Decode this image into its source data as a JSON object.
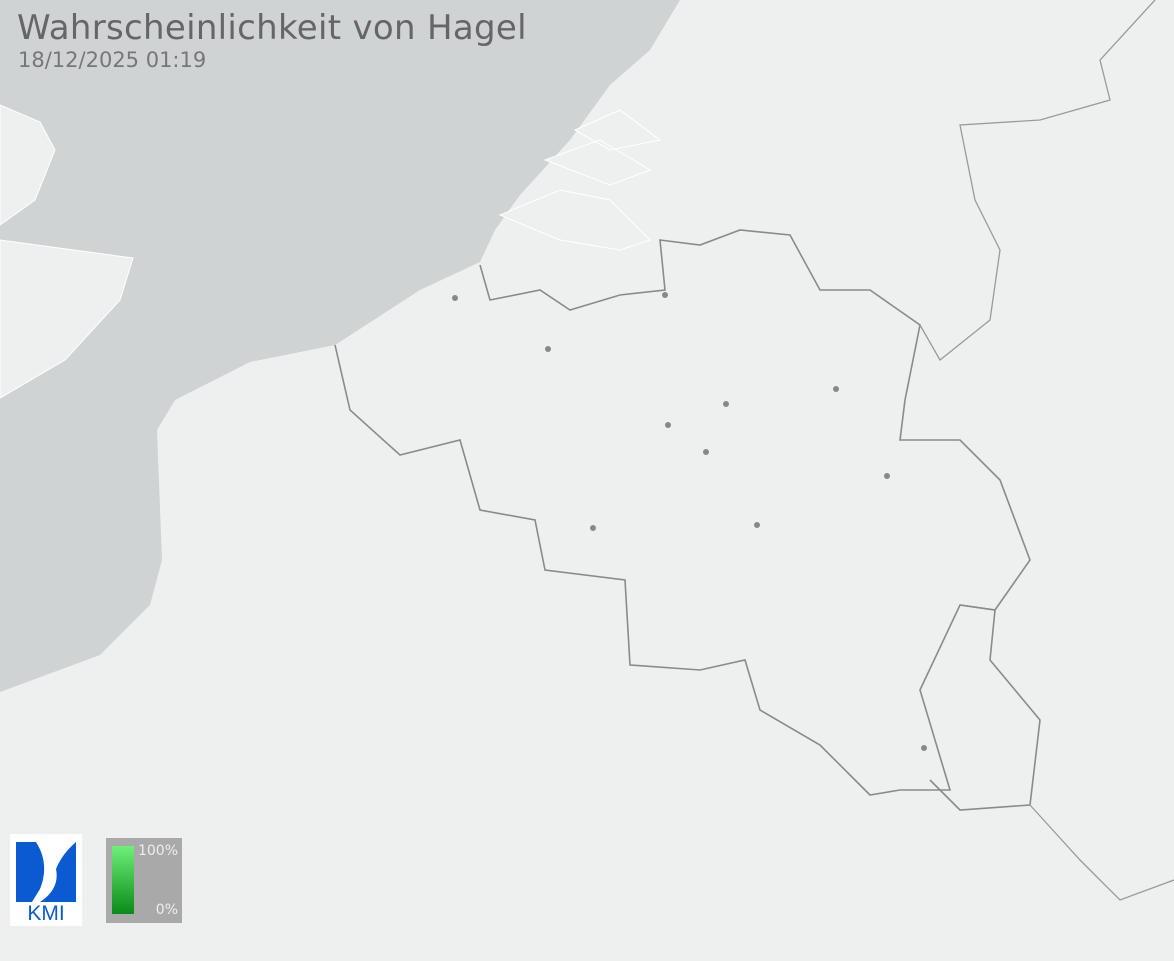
{
  "header": {
    "title": "Wahrscheinlichkeit von Hagel",
    "timestamp": "18/12/2025 01:19"
  },
  "legend": {
    "max_label": "100%",
    "min_label": "0%",
    "color_low": "#0a8a16",
    "color_high": "#6ef07a"
  },
  "logo": {
    "text": "KMI",
    "color": "#0a5ad2"
  },
  "colors": {
    "sea": "#d0d3d4",
    "land": "#eef0ef",
    "border": "#8a8a8a"
  }
}
